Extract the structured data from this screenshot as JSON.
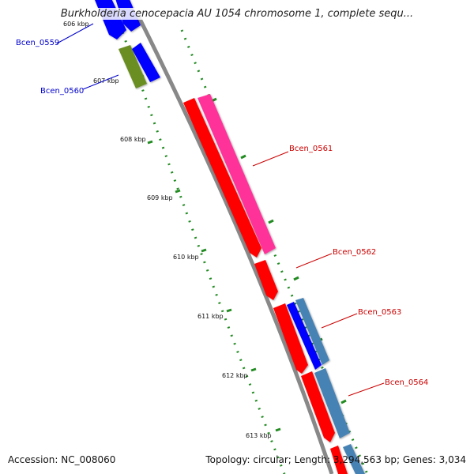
{
  "title": "Burkholderia cenocepacia AU 1054 chromosome 1, complete sequ...",
  "footer": {
    "accession": "Accession: NC_008060",
    "summary": "Topology: circular; Length: 3,294,563 bp; Genes: 3,034"
  },
  "ticks": [
    "606 kbp",
    "607 kbp",
    "608 kbp",
    "609 kbp",
    "610 kbp",
    "611 kbp",
    "612 kbp",
    "613 kbp"
  ],
  "genes": [
    {
      "id": "Bcen_0559",
      "color": "#0000cc"
    },
    {
      "id": "Bcen_0560",
      "color": "#0000cc"
    },
    {
      "id": "Bcen_0561",
      "color": "#cc0000"
    },
    {
      "id": "Bcen_0562",
      "color": "#cc0000"
    },
    {
      "id": "Bcen_0563",
      "color": "#cc0000"
    },
    {
      "id": "Bcen_0564",
      "color": "#cc0000"
    }
  ],
  "colors": {
    "cds_red": "#ff0000",
    "cds_blue": "#0000ff",
    "cds_magenta": "#ff3399",
    "cds_olive": "#6b8e23",
    "cds_steelblue": "#4682b4",
    "backbone": "#888888",
    "tick_green": "#228b22"
  }
}
